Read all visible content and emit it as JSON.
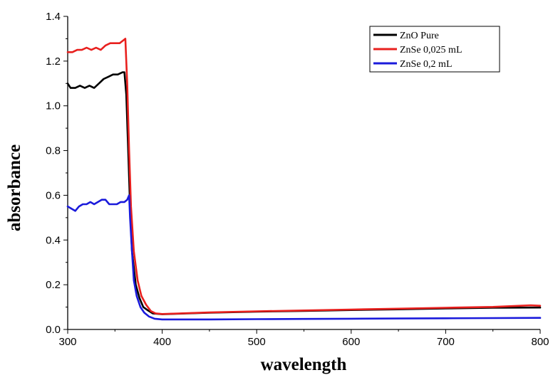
{
  "chart_data": {
    "type": "line",
    "title": "",
    "xlabel": "wavelength",
    "ylabel": "absorbance",
    "xlim": [
      300,
      800
    ],
    "ylim": [
      0.0,
      1.4
    ],
    "x_ticks": [
      "300",
      "400",
      "500",
      "600",
      "700",
      "800"
    ],
    "y_ticks": [
      "0.0",
      "0.2",
      "0.4",
      "0.6",
      "0.8",
      "1.0",
      "1.2",
      "1.4"
    ],
    "grid": false,
    "legend_position": "top-right",
    "series": [
      {
        "name": "ZnO Pure",
        "color": "#000000",
        "points": [
          [
            300,
            1.1
          ],
          [
            303,
            1.08
          ],
          [
            308,
            1.08
          ],
          [
            313,
            1.09
          ],
          [
            318,
            1.08
          ],
          [
            323,
            1.09
          ],
          [
            328,
            1.08
          ],
          [
            333,
            1.1
          ],
          [
            338,
            1.12
          ],
          [
            343,
            1.13
          ],
          [
            348,
            1.14
          ],
          [
            353,
            1.14
          ],
          [
            358,
            1.15
          ],
          [
            360,
            1.15
          ],
          [
            362,
            1.05
          ],
          [
            364,
            0.8
          ],
          [
            366,
            0.55
          ],
          [
            368,
            0.35
          ],
          [
            372,
            0.2
          ],
          [
            376,
            0.14
          ],
          [
            380,
            0.1
          ],
          [
            385,
            0.085
          ],
          [
            390,
            0.072
          ],
          [
            400,
            0.068
          ],
          [
            450,
            0.075
          ],
          [
            500,
            0.08
          ],
          [
            550,
            0.083
          ],
          [
            600,
            0.087
          ],
          [
            650,
            0.09
          ],
          [
            700,
            0.094
          ],
          [
            750,
            0.097
          ],
          [
            800,
            0.098
          ]
        ]
      },
      {
        "name": "ZnSe 0,025 mL",
        "color": "#e8201e",
        "points": [
          [
            300,
            1.24
          ],
          [
            305,
            1.24
          ],
          [
            310,
            1.25
          ],
          [
            315,
            1.25
          ],
          [
            320,
            1.26
          ],
          [
            325,
            1.25
          ],
          [
            330,
            1.26
          ],
          [
            335,
            1.25
          ],
          [
            340,
            1.27
          ],
          [
            345,
            1.28
          ],
          [
            350,
            1.28
          ],
          [
            355,
            1.28
          ],
          [
            358,
            1.29
          ],
          [
            361,
            1.3
          ],
          [
            363,
            1.1
          ],
          [
            365,
            0.8
          ],
          [
            367,
            0.55
          ],
          [
            370,
            0.35
          ],
          [
            374,
            0.22
          ],
          [
            378,
            0.15
          ],
          [
            383,
            0.11
          ],
          [
            388,
            0.082
          ],
          [
            393,
            0.072
          ],
          [
            400,
            0.069
          ],
          [
            450,
            0.076
          ],
          [
            500,
            0.081
          ],
          [
            550,
            0.085
          ],
          [
            600,
            0.089
          ],
          [
            650,
            0.093
          ],
          [
            700,
            0.097
          ],
          [
            750,
            0.101
          ],
          [
            790,
            0.108
          ],
          [
            800,
            0.106
          ]
        ]
      },
      {
        "name": "ZnSe 0,2 mL",
        "color": "#1a1adb",
        "points": [
          [
            300,
            0.55
          ],
          [
            304,
            0.54
          ],
          [
            308,
            0.53
          ],
          [
            312,
            0.55
          ],
          [
            316,
            0.56
          ],
          [
            320,
            0.56
          ],
          [
            324,
            0.57
          ],
          [
            328,
            0.56
          ],
          [
            332,
            0.57
          ],
          [
            336,
            0.58
          ],
          [
            340,
            0.58
          ],
          [
            344,
            0.56
          ],
          [
            348,
            0.56
          ],
          [
            352,
            0.56
          ],
          [
            356,
            0.57
          ],
          [
            360,
            0.57
          ],
          [
            363,
            0.58
          ],
          [
            365,
            0.6
          ],
          [
            366,
            0.5
          ],
          [
            368,
            0.35
          ],
          [
            370,
            0.22
          ],
          [
            373,
            0.15
          ],
          [
            377,
            0.1
          ],
          [
            381,
            0.075
          ],
          [
            386,
            0.058
          ],
          [
            392,
            0.048
          ],
          [
            400,
            0.045
          ],
          [
            450,
            0.045
          ],
          [
            500,
            0.046
          ],
          [
            550,
            0.047
          ],
          [
            600,
            0.048
          ],
          [
            650,
            0.049
          ],
          [
            700,
            0.05
          ],
          [
            750,
            0.051
          ],
          [
            800,
            0.052
          ]
        ]
      }
    ]
  }
}
